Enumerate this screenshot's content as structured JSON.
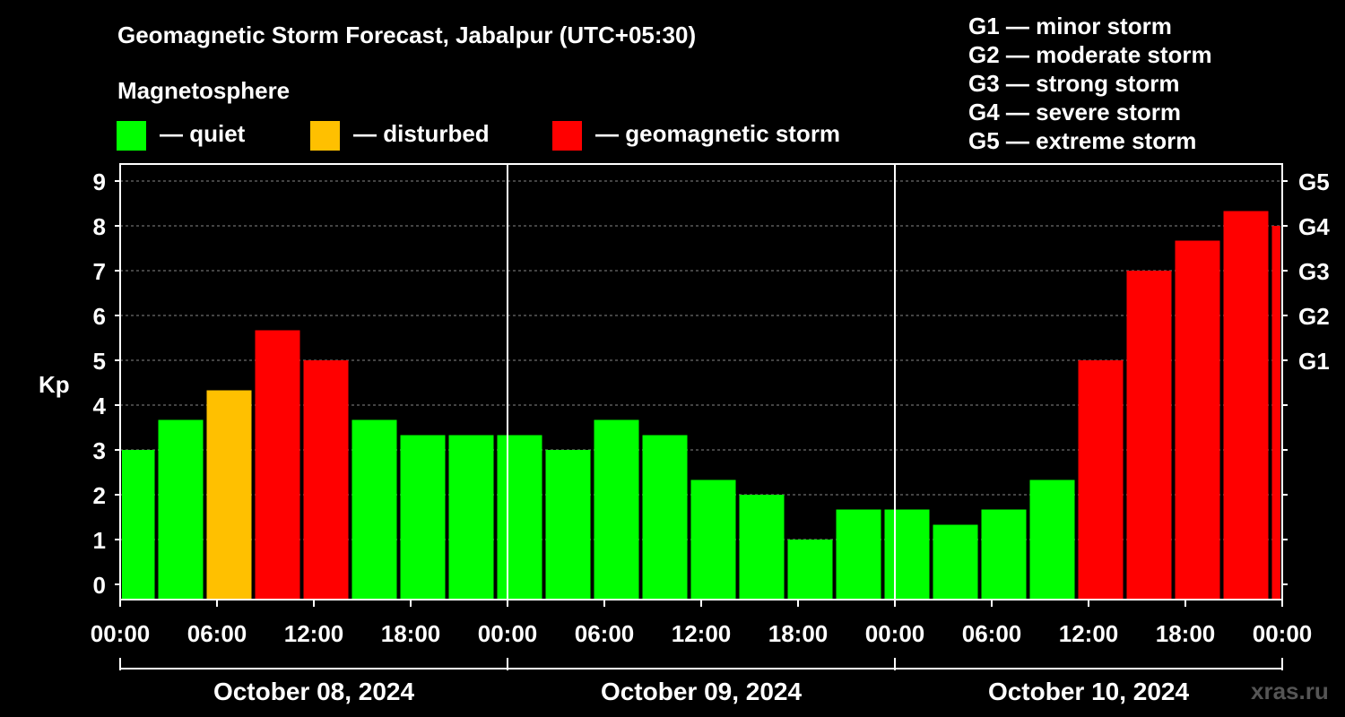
{
  "title": "Geomagnetic Storm Forecast, Jabalpur (UTC+05:30)",
  "legend": {
    "heading": "Magnetosphere",
    "items": [
      {
        "label": "— quiet",
        "color": "#00ff00"
      },
      {
        "label": "— disturbed",
        "color": "#ffc000"
      },
      {
        "label": "— geomagnetic storm",
        "color": "#ff0000"
      }
    ]
  },
  "storm_scale": [
    "G1 — minor storm",
    "G2 — moderate storm",
    "G3 — strong storm",
    "G4 — severe storm",
    "G5 — extreme storm"
  ],
  "watermark": "xras.ru",
  "chart_data": {
    "type": "bar",
    "title": "Geomagnetic Storm Forecast, Jabalpur (UTC+05:30)",
    "ylabel": "Kp",
    "ylim": [
      0,
      9
    ],
    "yticks": [
      0,
      1,
      2,
      3,
      4,
      5,
      6,
      7,
      8,
      9
    ],
    "right_axis_labels": [
      {
        "kp": 5,
        "label": "G1"
      },
      {
        "kp": 6,
        "label": "G2"
      },
      {
        "kp": 7,
        "label": "G3"
      },
      {
        "kp": 8,
        "label": "G4"
      },
      {
        "kp": 9,
        "label": "G5"
      }
    ],
    "x_range_hours": [
      0,
      72
    ],
    "xtick_labels": [
      "00:00",
      "06:00",
      "12:00",
      "18:00",
      "00:00",
      "06:00",
      "12:00",
      "18:00",
      "00:00",
      "06:00",
      "12:00",
      "18:00",
      "00:00"
    ],
    "dates": [
      "October 08, 2024",
      "October 09, 2024",
      "October 10, 2024"
    ],
    "bars": [
      {
        "start": 0,
        "end": 2.25,
        "value": 3.0,
        "level": "quiet"
      },
      {
        "start": 2.25,
        "end": 5.25,
        "value": 3.67,
        "level": "quiet"
      },
      {
        "start": 5.25,
        "end": 8.25,
        "value": 4.33,
        "level": "disturbed"
      },
      {
        "start": 8.25,
        "end": 11.25,
        "value": 5.67,
        "level": "storm"
      },
      {
        "start": 11.25,
        "end": 14.25,
        "value": 5.0,
        "level": "storm"
      },
      {
        "start": 14.25,
        "end": 17.25,
        "value": 3.67,
        "level": "quiet"
      },
      {
        "start": 17.25,
        "end": 20.25,
        "value": 3.33,
        "level": "quiet"
      },
      {
        "start": 20.25,
        "end": 23.25,
        "value": 3.33,
        "level": "quiet"
      },
      {
        "start": 23.25,
        "end": 26.25,
        "value": 3.33,
        "level": "quiet"
      },
      {
        "start": 26.25,
        "end": 29.25,
        "value": 3.0,
        "level": "quiet"
      },
      {
        "start": 29.25,
        "end": 32.25,
        "value": 3.67,
        "level": "quiet"
      },
      {
        "start": 32.25,
        "end": 35.25,
        "value": 3.33,
        "level": "quiet"
      },
      {
        "start": 35.25,
        "end": 38.25,
        "value": 2.33,
        "level": "quiet"
      },
      {
        "start": 38.25,
        "end": 41.25,
        "value": 2.0,
        "level": "quiet"
      },
      {
        "start": 41.25,
        "end": 44.25,
        "value": 1.0,
        "level": "quiet"
      },
      {
        "start": 44.25,
        "end": 47.25,
        "value": 1.67,
        "level": "quiet"
      },
      {
        "start": 47.25,
        "end": 50.25,
        "value": 1.67,
        "level": "quiet"
      },
      {
        "start": 50.25,
        "end": 53.25,
        "value": 1.33,
        "level": "quiet"
      },
      {
        "start": 53.25,
        "end": 56.25,
        "value": 1.67,
        "level": "quiet"
      },
      {
        "start": 56.25,
        "end": 59.25,
        "value": 2.33,
        "level": "quiet"
      },
      {
        "start": 59.25,
        "end": 62.25,
        "value": 5.0,
        "level": "storm"
      },
      {
        "start": 62.25,
        "end": 65.25,
        "value": 7.0,
        "level": "storm"
      },
      {
        "start": 65.25,
        "end": 68.25,
        "value": 7.67,
        "level": "storm"
      },
      {
        "start": 68.25,
        "end": 71.25,
        "value": 8.33,
        "level": "storm"
      },
      {
        "start": 71.25,
        "end": 72,
        "value": 8.0,
        "level": "storm"
      }
    ],
    "colors": {
      "quiet": "#00ff00",
      "disturbed": "#ffc000",
      "storm": "#ff0000"
    }
  }
}
